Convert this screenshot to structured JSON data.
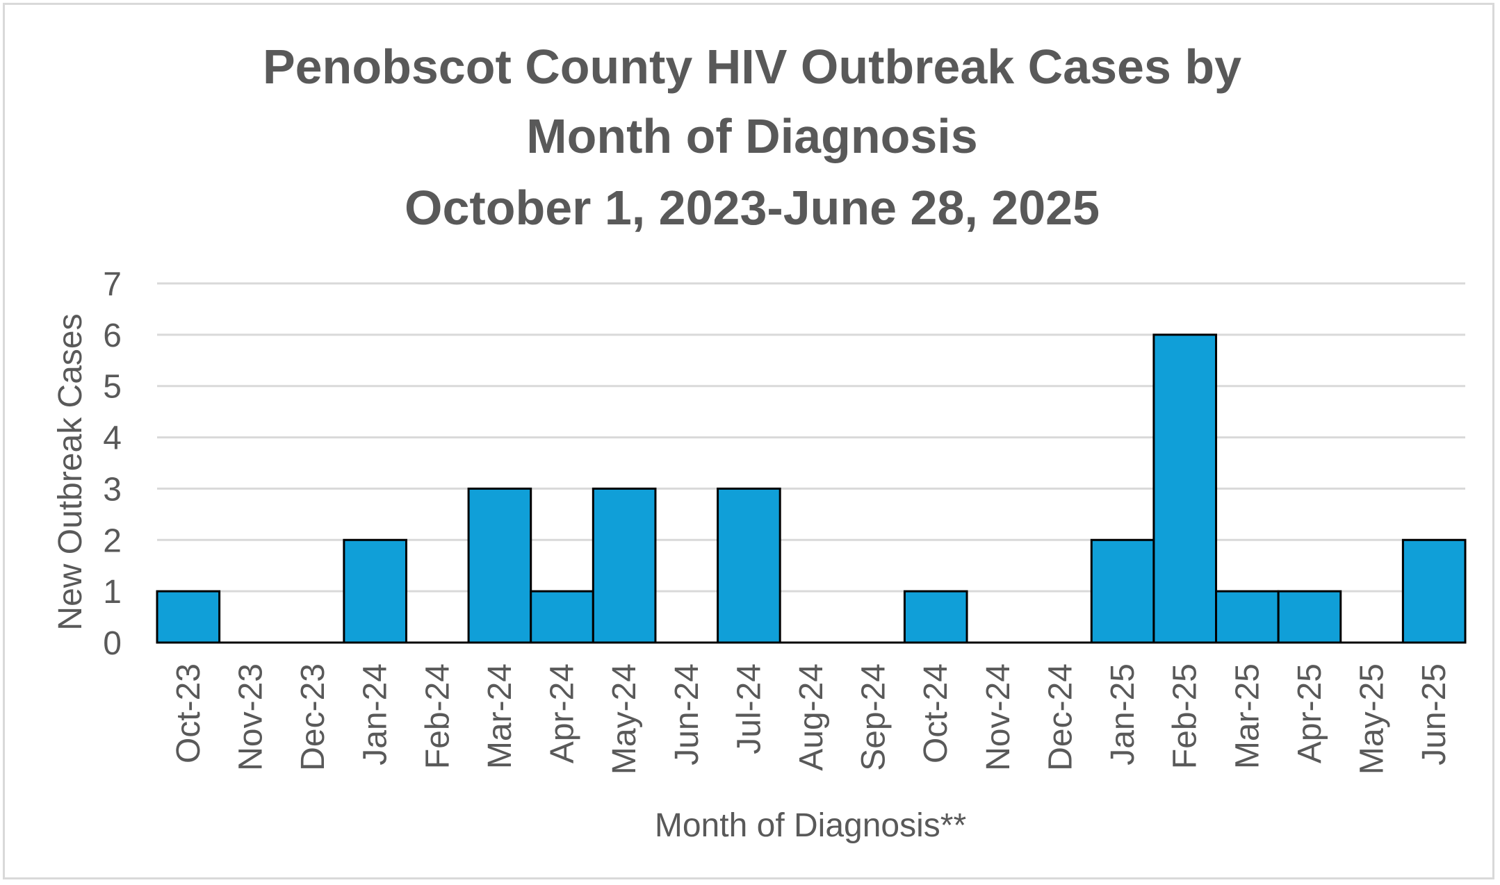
{
  "chart_data": {
    "type": "bar",
    "title_lines": [
      "Penobscot County HIV Outbreak Cases by",
      "Month of Diagnosis",
      "October 1, 2023-June 28, 2025"
    ],
    "xlabel": "Month of Diagnosis**",
    "ylabel": "New Outbreak Cases",
    "ylim": [
      0,
      7
    ],
    "yticks": [
      "0",
      "1",
      "2",
      "3",
      "4",
      "5",
      "6",
      "7"
    ],
    "grid": true,
    "legend": "none",
    "categories": [
      "Oct-23",
      "Nov-23",
      "Dec-23",
      "Jan-24",
      "Feb-24",
      "Mar-24",
      "Apr-24",
      "May-24",
      "Jun-24",
      "Jul-24",
      "Aug-24",
      "Sep-24",
      "Oct-24",
      "Nov-24",
      "Dec-24",
      "Jan-25",
      "Feb-25",
      "Mar-25",
      "Apr-25",
      "May-25",
      "Jun-25"
    ],
    "values": [
      1,
      0,
      0,
      2,
      0,
      3,
      1,
      3,
      0,
      3,
      0,
      0,
      1,
      0,
      0,
      2,
      6,
      1,
      1,
      0,
      2
    ],
    "bar_color": "#109fd8",
    "bar_edge_color": "#000000",
    "grid_color": "#d9d9d9",
    "text_color": "#595959"
  }
}
